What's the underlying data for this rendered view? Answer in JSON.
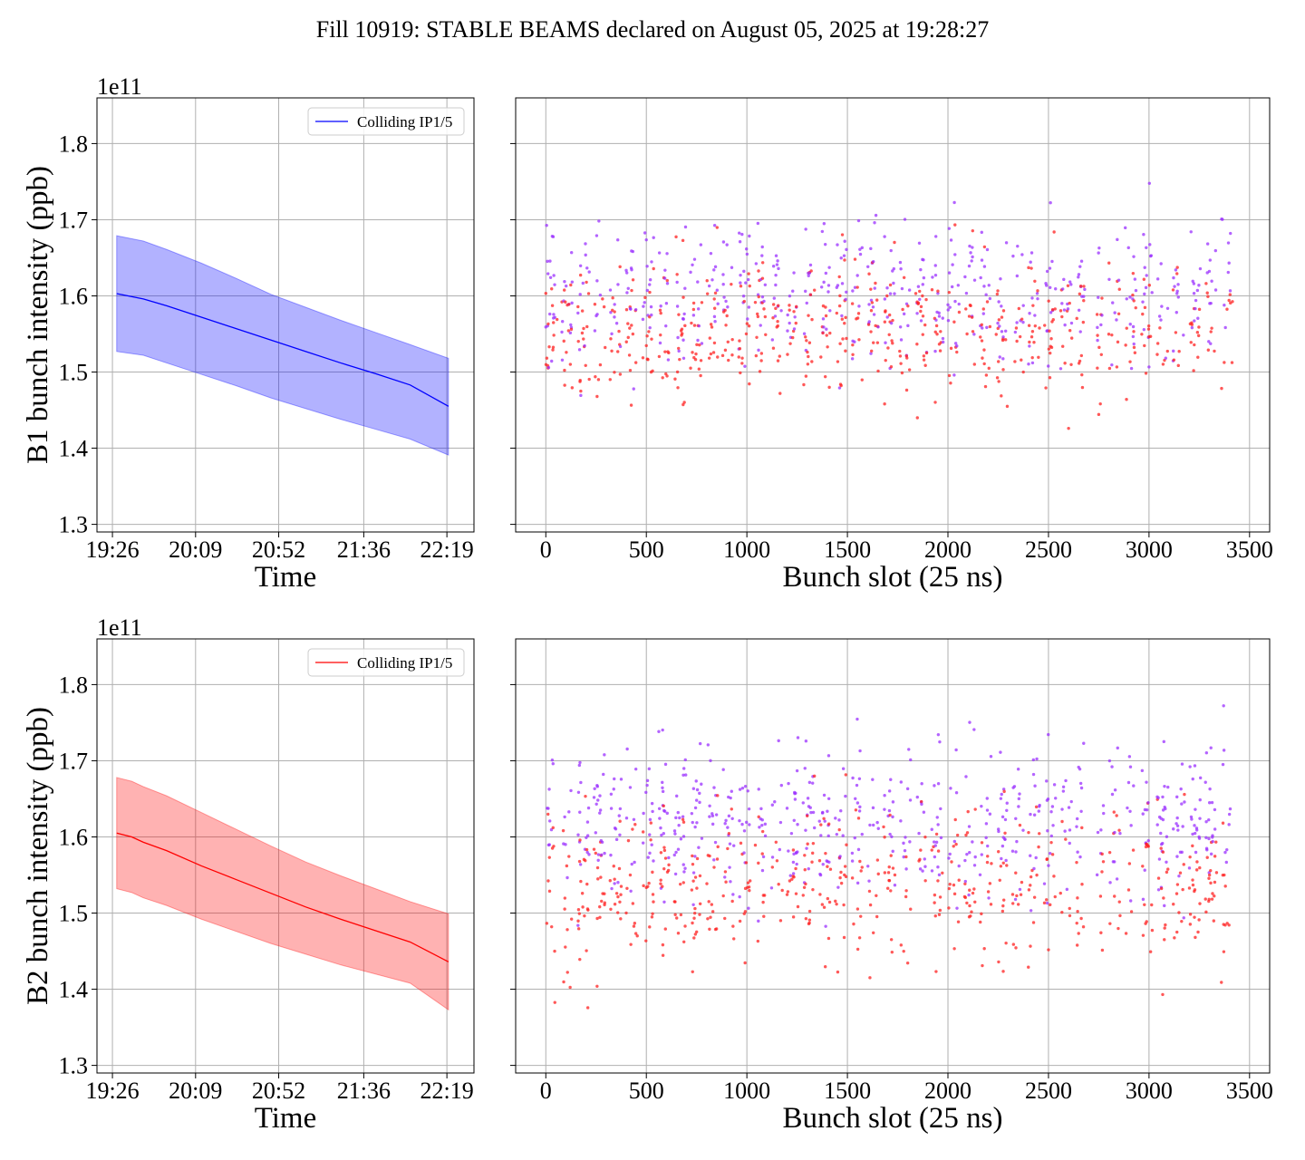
{
  "figure": {
    "title": "Fill 10919: STABLE BEAMS declared on August 05, 2025 at 19:28:27"
  },
  "chart_data": [
    {
      "id": "b1-time",
      "type": "line",
      "ylabel": "B1 bunch intensity (ppb)",
      "xlabel": "Time",
      "y_offset_label": "1e11",
      "xlim": [
        19.3,
        22.55
      ],
      "ylim": [
        1.29,
        1.86
      ],
      "yticks": [
        1.3,
        1.4,
        1.5,
        1.6,
        1.7,
        1.8
      ],
      "xticks": [
        {
          "value": 19.4333,
          "label": "19:26"
        },
        {
          "value": 20.15,
          "label": "20:09"
        },
        {
          "value": 20.8667,
          "label": "20:52"
        },
        {
          "value": 21.6,
          "label": "21:36"
        },
        {
          "value": 22.3167,
          "label": "22:19"
        }
      ],
      "grid": true,
      "legend": {
        "position": "top-right",
        "label": "Colliding IP1/5"
      },
      "series": [
        {
          "name": "Colliding IP1/5",
          "color": "#0000ff",
          "x": [
            19.47,
            19.7,
            19.9,
            20.2,
            20.5,
            20.8,
            21.1,
            21.4,
            21.7,
            22.0,
            22.33
          ],
          "mean": [
            1.603,
            1.596,
            1.587,
            1.572,
            1.557,
            1.542,
            1.527,
            1.512,
            1.498,
            1.483,
            1.455
          ],
          "upper": [
            1.679,
            1.672,
            1.661,
            1.643,
            1.623,
            1.602,
            1.585,
            1.568,
            1.552,
            1.536,
            1.518
          ],
          "lower": [
            1.527,
            1.522,
            1.512,
            1.497,
            1.482,
            1.466,
            1.452,
            1.438,
            1.425,
            1.412,
            1.391
          ]
        }
      ]
    },
    {
      "id": "b1-slot",
      "type": "scatter",
      "xlabel": "Bunch slot (25 ns)",
      "xlim": [
        -150,
        3600
      ],
      "ylim": [
        1.29,
        1.86
      ],
      "xticks": [
        0,
        500,
        1000,
        1500,
        2000,
        2500,
        3000,
        3500
      ],
      "grid": true,
      "slot_range": [
        0,
        3420
      ],
      "populations": [
        {
          "color": "#9b30ff",
          "center": 1.6,
          "spread": 0.05
        },
        {
          "color": "#ff2020",
          "center": 1.55,
          "spread": 0.045
        }
      ]
    },
    {
      "id": "b2-time",
      "type": "line",
      "ylabel": "B2 bunch intensity (ppb)",
      "xlabel": "Time",
      "y_offset_label": "1e11",
      "xlim": [
        19.3,
        22.55
      ],
      "ylim": [
        1.29,
        1.86
      ],
      "yticks": [
        1.3,
        1.4,
        1.5,
        1.6,
        1.7,
        1.8
      ],
      "xticks": [
        {
          "value": 19.4333,
          "label": "19:26"
        },
        {
          "value": 20.15,
          "label": "20:09"
        },
        {
          "value": 20.8667,
          "label": "20:52"
        },
        {
          "value": 21.6,
          "label": "21:36"
        },
        {
          "value": 22.3167,
          "label": "22:19"
        }
      ],
      "grid": true,
      "legend": {
        "position": "top-right",
        "label": "Colliding IP1/5"
      },
      "series": [
        {
          "name": "Colliding IP1/5",
          "color": "#ff0000",
          "x": [
            19.47,
            19.6,
            19.7,
            19.9,
            20.2,
            20.5,
            20.8,
            21.1,
            21.4,
            21.7,
            22.0,
            22.33
          ],
          "mean": [
            1.605,
            1.6,
            1.593,
            1.582,
            1.562,
            1.544,
            1.526,
            1.508,
            1.492,
            1.477,
            1.462,
            1.436
          ],
          "upper": [
            1.678,
            1.673,
            1.666,
            1.654,
            1.632,
            1.61,
            1.588,
            1.567,
            1.549,
            1.532,
            1.515,
            1.499
          ],
          "lower": [
            1.532,
            1.527,
            1.52,
            1.51,
            1.492,
            1.476,
            1.46,
            1.446,
            1.432,
            1.42,
            1.408,
            1.373
          ]
        }
      ]
    },
    {
      "id": "b2-slot",
      "type": "scatter",
      "xlabel": "Bunch slot (25 ns)",
      "xlim": [
        -150,
        3600
      ],
      "ylim": [
        1.29,
        1.86
      ],
      "xticks": [
        0,
        500,
        1000,
        1500,
        2000,
        2500,
        3000,
        3500
      ],
      "grid": true,
      "slot_range": [
        0,
        3420
      ],
      "populations": [
        {
          "color": "#9b30ff",
          "center": 1.62,
          "spread": 0.05
        },
        {
          "color": "#ff2020",
          "center": 1.53,
          "spread": 0.05
        }
      ]
    }
  ]
}
